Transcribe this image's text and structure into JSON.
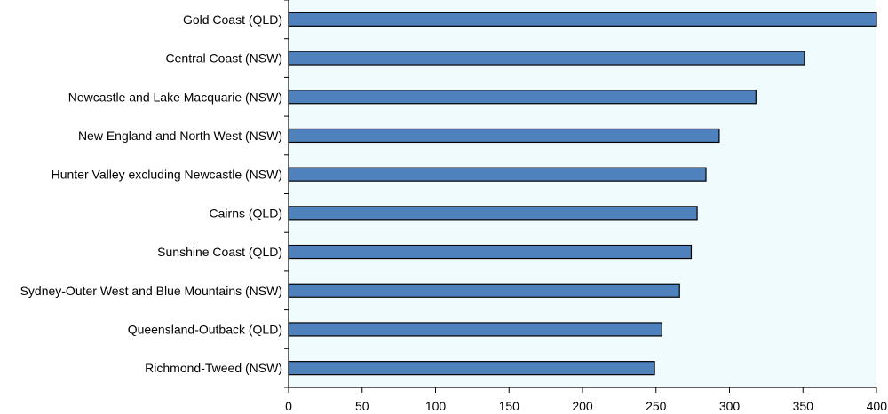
{
  "chart_data": {
    "type": "bar",
    "orientation": "horizontal",
    "categories": [
      "Gold Coast (QLD)",
      "Central Coast (NSW)",
      "Newcastle and Lake Macquarie (NSW)",
      "New England and North West (NSW)",
      "Hunter Valley excluding Newcastle  (NSW)",
      "Cairns  (QLD)",
      "Sunshine Coast  (QLD)",
      "Sydney-Outer West and Blue Mountains  (NSW)",
      "Queensland-Outback  (QLD)",
      "Richmond-Tweed  (NSW)"
    ],
    "values": [
      400,
      351,
      318,
      293,
      284,
      278,
      274,
      266,
      254,
      249
    ],
    "xlim": [
      0,
      400
    ],
    "xticks": [
      0,
      50,
      100,
      150,
      200,
      250,
      300,
      350,
      400
    ],
    "title": "",
    "xlabel": "",
    "ylabel": "",
    "grid": false,
    "legend": "none",
    "colors": {
      "bar": "#4f81bd",
      "bar_edge": "#000000",
      "plot_bg": "#f0fbfd"
    }
  }
}
